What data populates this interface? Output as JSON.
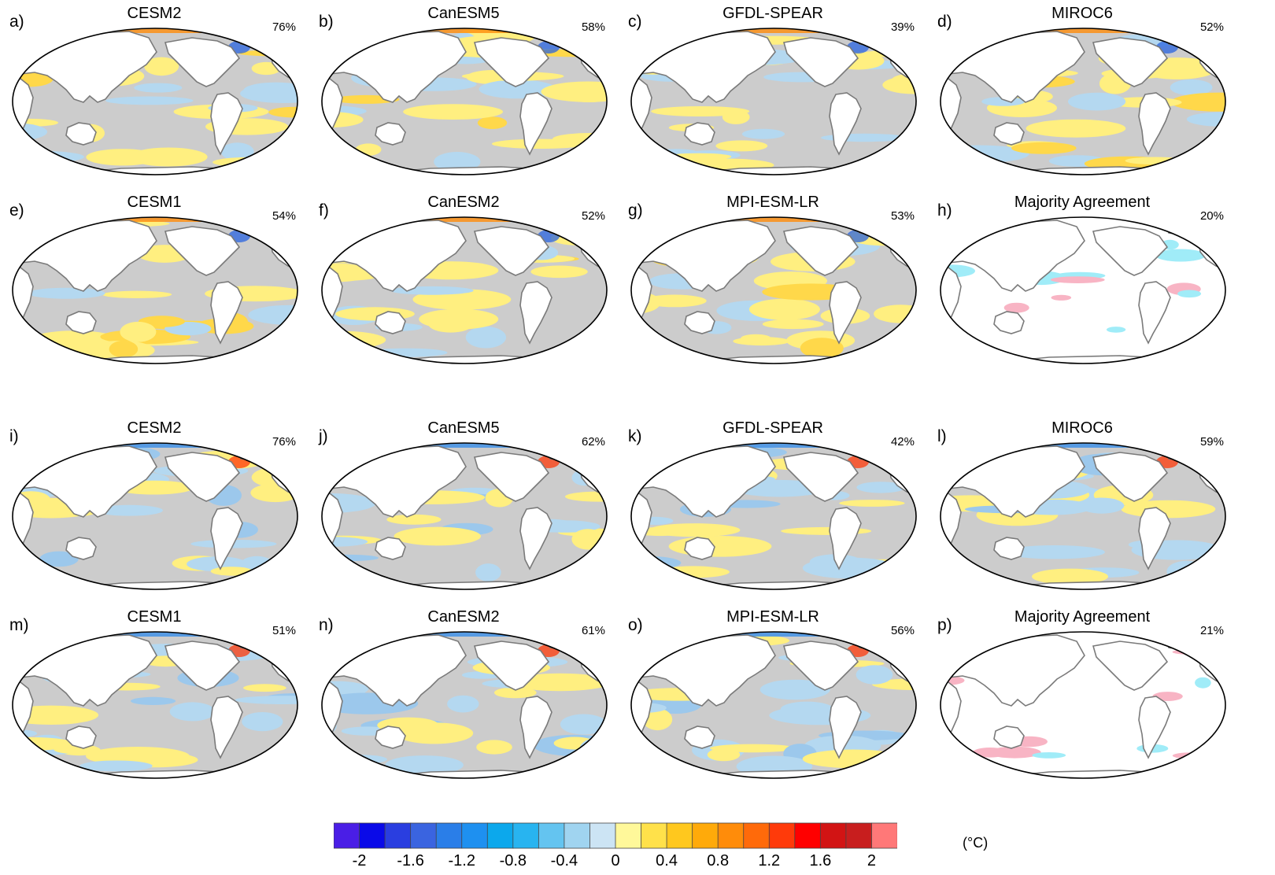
{
  "panels": [
    {
      "letter": "a)",
      "title": "CESM2",
      "percent": "76%",
      "scheme": "warm"
    },
    {
      "letter": "b)",
      "title": "CanESM5",
      "percent": "58%",
      "scheme": "warm"
    },
    {
      "letter": "c)",
      "title": "GFDL-SPEAR",
      "percent": "39%",
      "scheme": "warm"
    },
    {
      "letter": "d)",
      "title": "MIROC6",
      "percent": "52%",
      "scheme": "warm"
    },
    {
      "letter": "e)",
      "title": "CESM1",
      "percent": "54%",
      "scheme": "warm"
    },
    {
      "letter": "f)",
      "title": "CanESM2",
      "percent": "52%",
      "scheme": "warm"
    },
    {
      "letter": "g)",
      "title": "MPI-ESM-LR",
      "percent": "53%",
      "scheme": "warm"
    },
    {
      "letter": "h)",
      "title": "Majority Agreement",
      "percent": "20%",
      "scheme": "agree"
    },
    {
      "letter": "i)",
      "title": "CESM2",
      "percent": "76%",
      "scheme": "cool"
    },
    {
      "letter": "j)",
      "title": "CanESM5",
      "percent": "62%",
      "scheme": "cool"
    },
    {
      "letter": "k)",
      "title": "GFDL-SPEAR",
      "percent": "42%",
      "scheme": "cool"
    },
    {
      "letter": "l)",
      "title": "MIROC6",
      "percent": "59%",
      "scheme": "cool"
    },
    {
      "letter": "m)",
      "title": "CESM1",
      "percent": "51%",
      "scheme": "cool"
    },
    {
      "letter": "n)",
      "title": "CanESM2",
      "percent": "61%",
      "scheme": "cool"
    },
    {
      "letter": "o)",
      "title": "MPI-ESM-LR",
      "percent": "56%",
      "scheme": "cool"
    },
    {
      "letter": "p)",
      "title": "Majority Agreement",
      "percent": "21%",
      "scheme": "agree"
    }
  ],
  "colorbar": {
    "unit": "(°C)",
    "tick_labels": [
      "-2",
      "-1.6",
      "-1.2",
      "-0.8",
      "-0.4",
      "0",
      "0.4",
      "0.8",
      "1.2",
      "1.6",
      "2"
    ],
    "colors": [
      "#4a1ee6",
      "#0a0ae8",
      "#2a3ee0",
      "#3a64e0",
      "#2a7ee8",
      "#1e90f0",
      "#0ca8ec",
      "#28b4f0",
      "#64c4f0",
      "#a0d4f0",
      "#cce4f4",
      "#fff89a",
      "#ffe14a",
      "#ffc81e",
      "#ffaa0a",
      "#ff8c0a",
      "#ff6a0a",
      "#ff3a0a",
      "#ff0000",
      "#d21414",
      "#c81e1e",
      "#ff7878"
    ]
  },
  "colors": {
    "ocean_gray": "#cccccc",
    "land": "#ffffff",
    "coast": "#7a7a7a",
    "warm": "#ffef80",
    "cool": "#b4d8f0",
    "agree_pos": "#f8b4c4",
    "agree_neg": "#a0ecf8"
  }
}
